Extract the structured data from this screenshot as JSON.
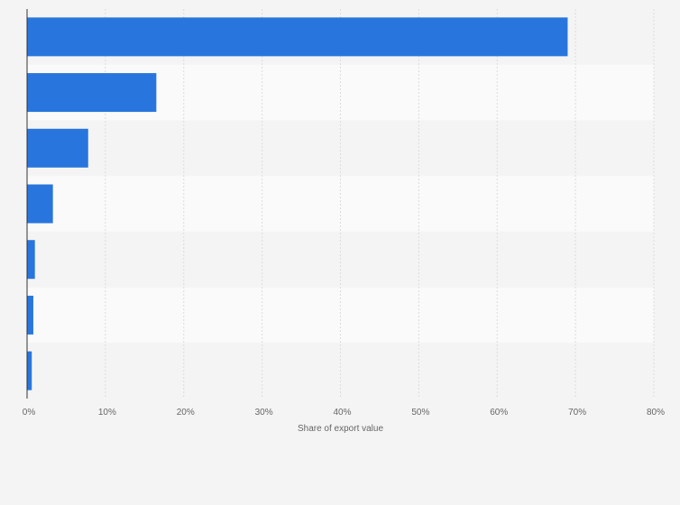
{
  "chart_data": {
    "type": "bar",
    "orientation": "horizontal",
    "categories": [
      "",
      "",
      "",
      "",
      "",
      "",
      ""
    ],
    "values": [
      69.0,
      16.5,
      7.8,
      3.3,
      1.0,
      0.8,
      0.6
    ],
    "value_unit": "%",
    "xlabel": "Share of export value",
    "ylabel": "",
    "xlim": [
      0,
      80
    ],
    "xticks": [
      0,
      10,
      20,
      30,
      40,
      50,
      60,
      70,
      80
    ],
    "xtick_labels": [
      "0%",
      "10%",
      "20%",
      "30%",
      "40%",
      "50%",
      "60%",
      "70%",
      "80%"
    ],
    "grid": true,
    "bar_color": "#2876dd"
  }
}
